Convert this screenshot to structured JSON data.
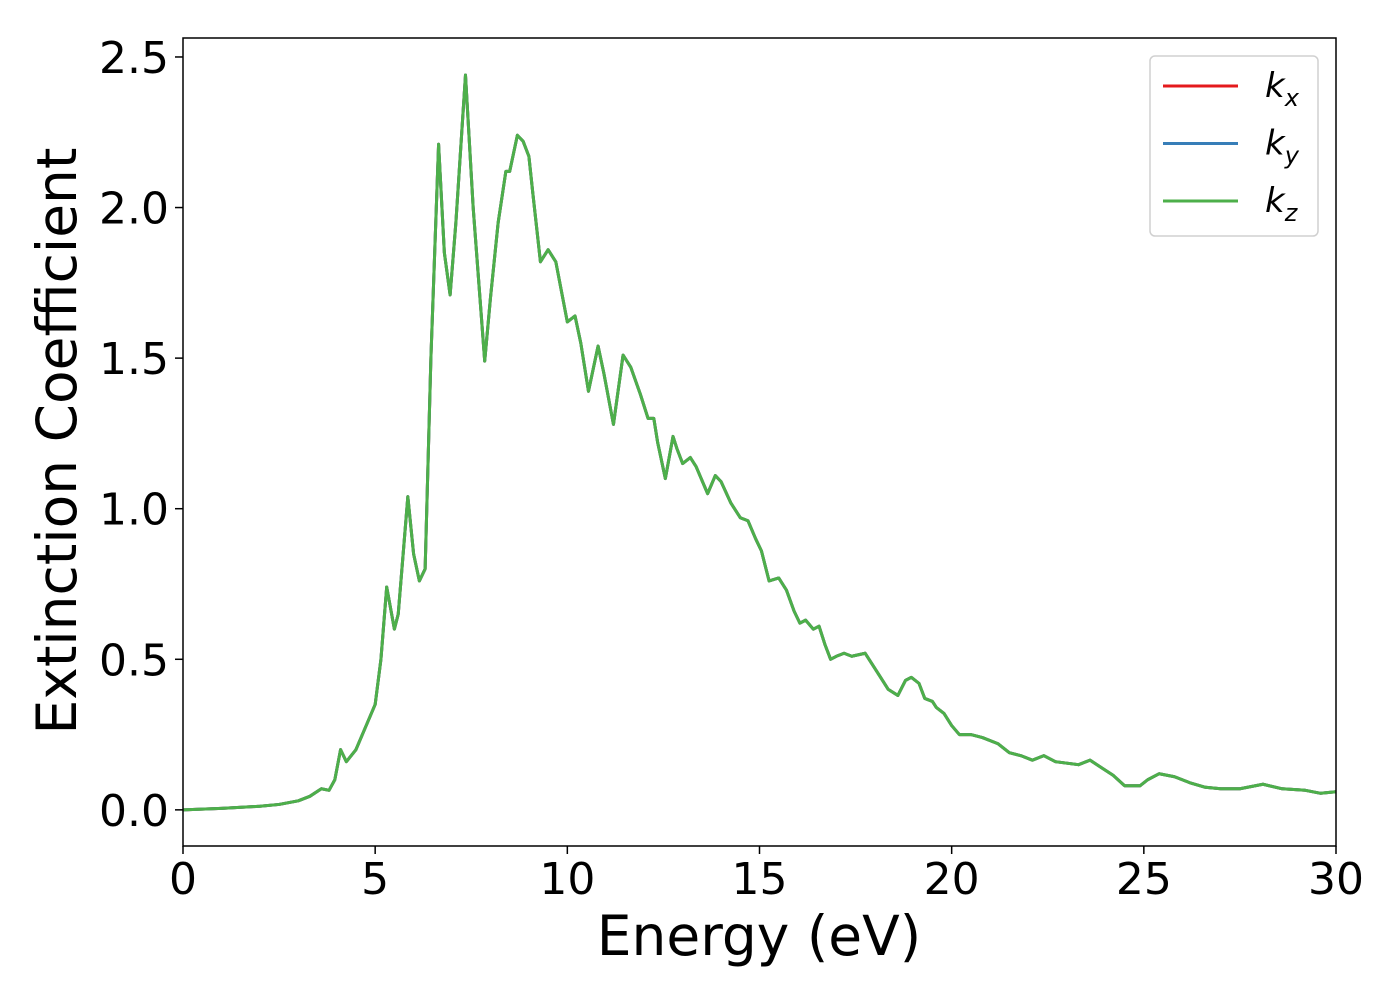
{
  "chart_data": {
    "type": "line",
    "xlabel": "Energy (eV)",
    "ylabel": "Extinction Coefficient",
    "xlim": [
      0,
      30
    ],
    "ylim": [
      -0.12,
      2.563
    ],
    "xticks": [
      0,
      5,
      10,
      15,
      20,
      25,
      30
    ],
    "yticks": [
      {
        "value": 0,
        "label": "0.0"
      },
      0.5,
      {
        "value": 1,
        "label": "1.0"
      },
      1.5,
      {
        "value": 2,
        "label": "2.0"
      },
      2.5
    ],
    "grid": false,
    "legend": "upper right",
    "x": [
      0,
      1,
      2,
      2.5,
      3,
      3.3,
      3.6,
      3.8,
      3.95,
      4.1,
      4.25,
      4.5,
      4.7,
      5.0,
      5.15,
      5.3,
      5.5,
      5.6,
      5.85,
      6.0,
      6.15,
      6.3,
      6.45,
      6.65,
      6.8,
      6.95,
      7.1,
      7.35,
      7.55,
      7.85,
      8.0,
      8.2,
      8.4,
      8.5,
      8.7,
      8.85,
      9.0,
      9.1,
      9.3,
      9.5,
      9.7,
      9.85,
      10.0,
      10.2,
      10.35,
      10.55,
      10.8,
      10.95,
      11.2,
      11.45,
      11.65,
      11.9,
      12.1,
      12.25,
      12.35,
      12.55,
      12.75,
      12.85,
      13.0,
      13.2,
      13.35,
      13.55,
      13.65,
      13.85,
      14.0,
      14.25,
      14.5,
      14.7,
      14.9,
      15.05,
      15.25,
      15.5,
      15.7,
      15.9,
      16.05,
      16.2,
      16.4,
      16.55,
      16.7,
      16.85,
      17.0,
      17.2,
      17.4,
      17.75,
      17.95,
      18.15,
      18.35,
      18.6,
      18.8,
      18.95,
      19.15,
      19.3,
      19.5,
      19.6,
      19.8,
      20.0,
      20.2,
      20.5,
      20.8,
      21.2,
      21.5,
      21.8,
      22.1,
      22.4,
      22.7,
      23.0,
      23.3,
      23.6,
      23.9,
      24.2,
      24.5,
      24.9,
      25.1,
      25.4,
      25.8,
      26.2,
      26.6,
      27,
      27.5,
      28.1,
      28.6,
      29.2,
      29.6,
      30
    ],
    "series": [
      {
        "name": "kx",
        "color": "#e41a1c",
        "values": [
          0,
          0.005,
          0.012,
          0.018,
          0.03,
          0.045,
          0.07,
          0.065,
          0.1,
          0.2,
          0.16,
          0.2,
          0.26,
          0.35,
          0.5,
          0.74,
          0.6,
          0.65,
          1.04,
          0.85,
          0.76,
          0.8,
          1.5,
          2.21,
          1.85,
          1.71,
          1.95,
          2.44,
          2.0,
          1.49,
          1.7,
          1.95,
          2.12,
          2.12,
          2.24,
          2.22,
          2.17,
          2.05,
          1.82,
          1.86,
          1.82,
          1.72,
          1.62,
          1.64,
          1.55,
          1.39,
          1.54,
          1.45,
          1.28,
          1.51,
          1.47,
          1.38,
          1.3,
          1.3,
          1.22,
          1.1,
          1.24,
          1.2,
          1.15,
          1.17,
          1.14,
          1.08,
          1.05,
          1.11,
          1.09,
          1.02,
          0.97,
          0.96,
          0.9,
          0.86,
          0.76,
          0.77,
          0.73,
          0.66,
          0.62,
          0.63,
          0.6,
          0.61,
          0.55,
          0.5,
          0.51,
          0.52,
          0.51,
          0.52,
          0.48,
          0.44,
          0.4,
          0.38,
          0.43,
          0.44,
          0.42,
          0.37,
          0.36,
          0.34,
          0.32,
          0.28,
          0.25,
          0.25,
          0.24,
          0.22,
          0.19,
          0.18,
          0.165,
          0.18,
          0.16,
          0.155,
          0.15,
          0.165,
          0.14,
          0.115,
          0.08,
          0.08,
          0.1,
          0.12,
          0.11,
          0.09,
          0.075,
          0.07,
          0.07,
          0.085,
          0.07,
          0.065,
          0.055,
          0.06
        ]
      },
      {
        "name": "ky",
        "color": "#377eb8",
        "values": [
          0,
          0.005,
          0.012,
          0.018,
          0.03,
          0.045,
          0.07,
          0.065,
          0.1,
          0.2,
          0.16,
          0.2,
          0.26,
          0.35,
          0.5,
          0.74,
          0.6,
          0.65,
          1.04,
          0.85,
          0.76,
          0.8,
          1.5,
          2.21,
          1.85,
          1.71,
          1.95,
          2.44,
          2.0,
          1.49,
          1.7,
          1.95,
          2.12,
          2.12,
          2.24,
          2.22,
          2.17,
          2.05,
          1.82,
          1.86,
          1.82,
          1.72,
          1.62,
          1.64,
          1.55,
          1.39,
          1.54,
          1.45,
          1.28,
          1.51,
          1.47,
          1.38,
          1.3,
          1.3,
          1.22,
          1.1,
          1.24,
          1.2,
          1.15,
          1.17,
          1.14,
          1.08,
          1.05,
          1.11,
          1.09,
          1.02,
          0.97,
          0.96,
          0.9,
          0.86,
          0.76,
          0.77,
          0.73,
          0.66,
          0.62,
          0.63,
          0.6,
          0.61,
          0.55,
          0.5,
          0.51,
          0.52,
          0.51,
          0.52,
          0.48,
          0.44,
          0.4,
          0.38,
          0.43,
          0.44,
          0.42,
          0.37,
          0.36,
          0.34,
          0.32,
          0.28,
          0.25,
          0.25,
          0.24,
          0.22,
          0.19,
          0.18,
          0.165,
          0.18,
          0.16,
          0.155,
          0.15,
          0.165,
          0.14,
          0.115,
          0.08,
          0.08,
          0.1,
          0.12,
          0.11,
          0.09,
          0.075,
          0.07,
          0.07,
          0.085,
          0.07,
          0.065,
          0.055,
          0.06
        ]
      },
      {
        "name": "kz",
        "color": "#4daf4a",
        "values": [
          0,
          0.005,
          0.012,
          0.018,
          0.03,
          0.045,
          0.07,
          0.065,
          0.1,
          0.2,
          0.16,
          0.2,
          0.26,
          0.35,
          0.5,
          0.74,
          0.6,
          0.65,
          1.04,
          0.85,
          0.76,
          0.8,
          1.5,
          2.21,
          1.85,
          1.71,
          1.95,
          2.44,
          2.0,
          1.49,
          1.7,
          1.95,
          2.12,
          2.12,
          2.24,
          2.22,
          2.17,
          2.05,
          1.82,
          1.86,
          1.82,
          1.72,
          1.62,
          1.64,
          1.55,
          1.39,
          1.54,
          1.45,
          1.28,
          1.51,
          1.47,
          1.38,
          1.3,
          1.3,
          1.22,
          1.1,
          1.24,
          1.2,
          1.15,
          1.17,
          1.14,
          1.08,
          1.05,
          1.11,
          1.09,
          1.02,
          0.97,
          0.96,
          0.9,
          0.86,
          0.76,
          0.77,
          0.73,
          0.66,
          0.62,
          0.63,
          0.6,
          0.61,
          0.55,
          0.5,
          0.51,
          0.52,
          0.51,
          0.52,
          0.48,
          0.44,
          0.4,
          0.38,
          0.43,
          0.44,
          0.42,
          0.37,
          0.36,
          0.34,
          0.32,
          0.28,
          0.25,
          0.25,
          0.24,
          0.22,
          0.19,
          0.18,
          0.165,
          0.18,
          0.16,
          0.155,
          0.15,
          0.165,
          0.14,
          0.115,
          0.08,
          0.08,
          0.1,
          0.12,
          0.11,
          0.09,
          0.075,
          0.07,
          0.07,
          0.085,
          0.07,
          0.065,
          0.055,
          0.06
        ]
      }
    ]
  }
}
